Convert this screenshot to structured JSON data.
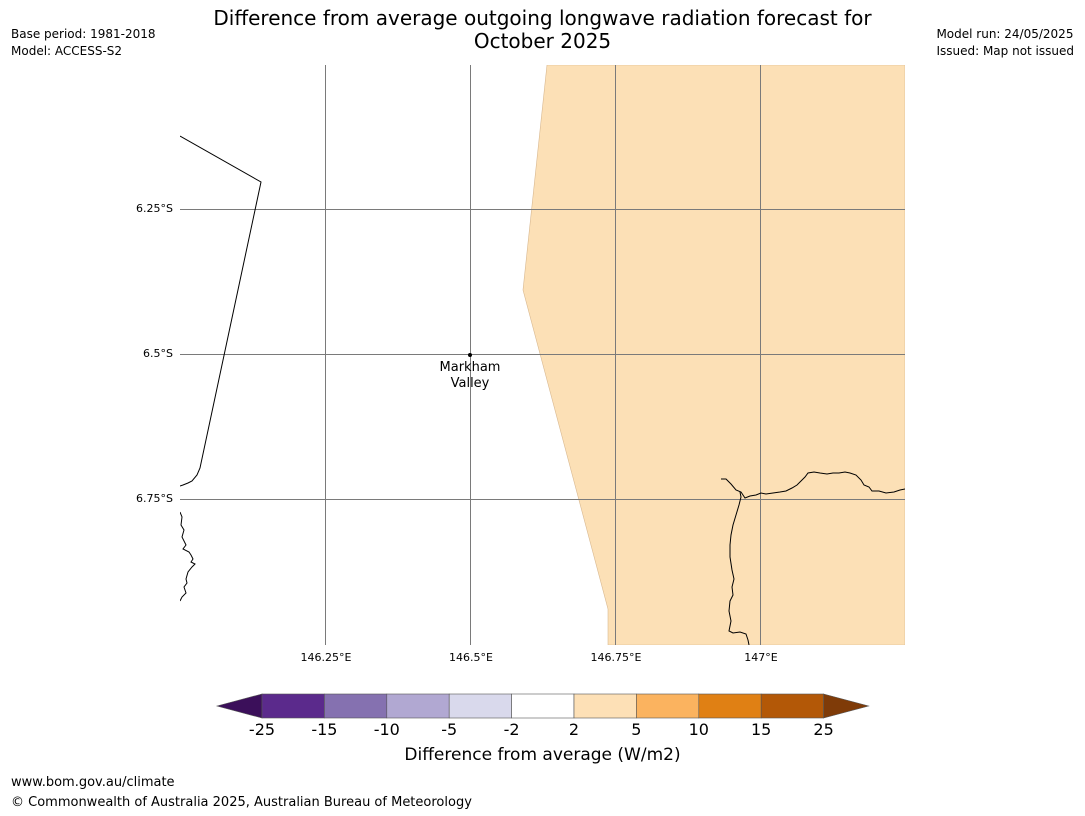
{
  "title": {
    "line1": "Difference from average outgoing longwave radiation forecast for",
    "line2": "October 2025"
  },
  "meta_left": {
    "base_period": "Base period: 1981-2018",
    "model": "Model: ACCESS-S2"
  },
  "meta_right": {
    "model_run": "Model run: 24/05/2025",
    "issued": "Issued: Map not issued"
  },
  "map": {
    "latitude_labels": [
      "6.25°S",
      "6.5°S",
      "6.75°S"
    ],
    "longitude_labels": [
      "146.25°E",
      "146.5°E",
      "146.75°E",
      "147°E"
    ],
    "place": {
      "name_line1": "Markham",
      "name_line2": "Valley"
    },
    "shaded_category": "2 to 5",
    "colors": {
      "shade": "#fce0b6",
      "gridline": "#7a7a7a",
      "coastline": "#000000"
    }
  },
  "colorbar": {
    "ticks": [
      "-25",
      "-15",
      "-10",
      "-5",
      "-2",
      "2",
      "5",
      "10",
      "15",
      "25"
    ],
    "colors": [
      "#3b0f5a",
      "#5b2a8c",
      "#8571b0",
      "#b1a8d2",
      "#d9d9ec",
      "#ffffff",
      "#fde0b6",
      "#fbb35f",
      "#e08014",
      "#b35807",
      "#7f3b08"
    ],
    "label": "Difference from average (W/m2)"
  },
  "footer": {
    "url": "www.bom.gov.au/climate",
    "copyright": "© Commonwealth of Australia 2025, Australian Bureau of Meteorology"
  }
}
